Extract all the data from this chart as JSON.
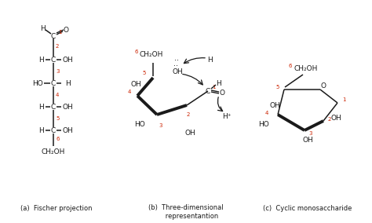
{
  "bg_color": "#ffffff",
  "red": "#cc2200",
  "blk": "#1a1a1a",
  "caption_a": "(a)  Fischer projection",
  "caption_b": "(b)  Three-dimensional\n      representantion",
  "caption_c": "(c)  Cyclic monosaccharide",
  "fig_w": 4.74,
  "fig_h": 2.84,
  "dpi": 100
}
